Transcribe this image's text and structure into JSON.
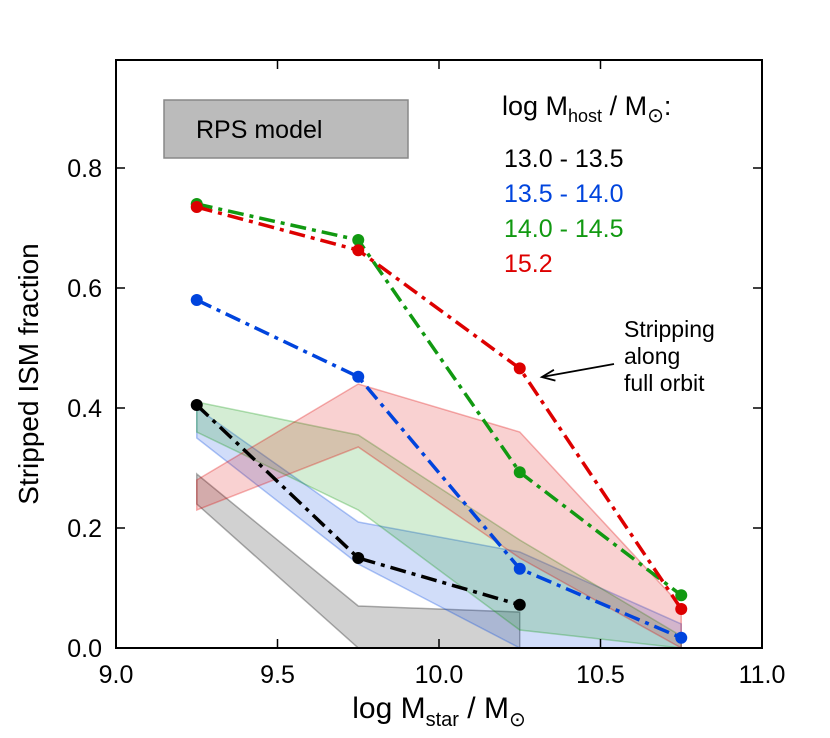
{
  "chart_data": {
    "type": "line",
    "title": "",
    "xlabel": {
      "main": "log M",
      "sub": "star",
      "tail": " / M",
      "sun": "⊙"
    },
    "ylabel": "Stripped ISM fraction",
    "xlim": [
      9.0,
      11.0
    ],
    "ylim": [
      0.0,
      0.98
    ],
    "xticks": [
      9.0,
      9.5,
      10.0,
      10.5,
      11.0
    ],
    "xtick_labels": [
      "9.0",
      "9.5",
      "10.0",
      "10.5",
      "11.0"
    ],
    "yticks": [
      0.0,
      0.2,
      0.4,
      0.6,
      0.8
    ],
    "ytick_labels": [
      "0.0",
      "0.2",
      "0.4",
      "0.6",
      "0.8"
    ],
    "grid": false,
    "legend": {
      "title": {
        "main": "log M",
        "sub": "host",
        "tail": " / M",
        "sun": "⊙",
        "end": ":"
      },
      "placement": "top-right"
    },
    "model_legend": {
      "label": "RPS model",
      "color": "#bbbbbb"
    },
    "series": [
      {
        "name": "13.0 - 13.5",
        "color": "#000000",
        "x": [
          9.25,
          9.75,
          10.25
        ],
        "y": [
          0.405,
          0.15,
          0.072
        ],
        "band": {
          "x": [
            9.25,
            9.75,
            10.25
          ],
          "lower": [
            0.24,
            0.0,
            0.0
          ],
          "upper": [
            0.29,
            0.07,
            0.06
          ]
        }
      },
      {
        "name": "13.5 - 14.0",
        "color": "#0044dd",
        "x": [
          9.25,
          9.75,
          10.25,
          10.75
        ],
        "y": [
          0.58,
          0.452,
          0.132,
          0.017
        ],
        "band": {
          "x": [
            9.25,
            9.75,
            10.25,
            10.75
          ],
          "lower": [
            0.35,
            0.14,
            0.0,
            0.0
          ],
          "upper": [
            0.4,
            0.21,
            0.16,
            0.04
          ]
        }
      },
      {
        "name": "14.0 - 14.5",
        "color": "#119911",
        "x": [
          9.25,
          9.75,
          10.25,
          10.75
        ],
        "y": [
          0.74,
          0.68,
          0.293,
          0.088
        ],
        "band": {
          "x": [
            9.25,
            9.75,
            10.25,
            10.75
          ],
          "lower": [
            0.36,
            0.23,
            0.03,
            0.0
          ],
          "upper": [
            0.41,
            0.355,
            0.18,
            0.02
          ]
        }
      },
      {
        "name": "15.2",
        "color": "#dd0000",
        "x": [
          9.25,
          9.75,
          10.25,
          10.75
        ],
        "y": [
          0.735,
          0.663,
          0.466,
          0.065
        ],
        "band": {
          "x": [
            9.25,
            9.75,
            10.25,
            10.75
          ],
          "lower": [
            0.23,
            0.335,
            0.15,
            0.0
          ],
          "upper": [
            0.28,
            0.44,
            0.36,
            0.07
          ]
        }
      }
    ],
    "annotation": {
      "lines": [
        "Stripping",
        "along",
        "full orbit"
      ],
      "target": {
        "x": 10.3,
        "y": 0.455
      }
    }
  }
}
